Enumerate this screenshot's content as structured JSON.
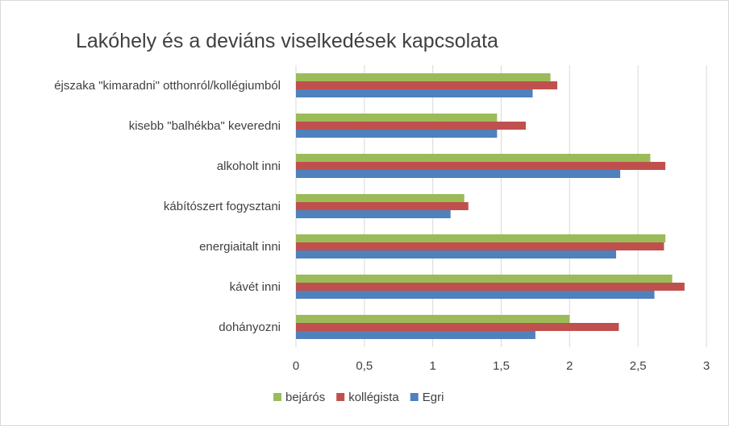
{
  "chart_data": {
    "type": "bar",
    "orientation": "horizontal",
    "title": "Lakóhely és a deviáns viselkedések kapcsolata",
    "categories": [
      "éjszaka \"kimaradni\" otthonról/kollégiumból",
      "kisebb \"balhékba\" keveredni",
      "alkoholt inni",
      "kábítószert fogysztani",
      "energiaitalt inni",
      "kávét inni",
      "dohányozni"
    ],
    "series": [
      {
        "name": "bejárós",
        "color": "#9bbb59",
        "values": [
          1.86,
          1.47,
          2.59,
          1.23,
          2.7,
          2.75,
          2.0
        ]
      },
      {
        "name": "kollégista",
        "color": "#c0504d",
        "values": [
          1.91,
          1.68,
          2.7,
          1.26,
          2.69,
          2.84,
          2.36
        ]
      },
      {
        "name": "Egri",
        "color": "#4f81bd",
        "values": [
          1.73,
          1.47,
          2.37,
          1.13,
          2.34,
          2.62,
          1.75
        ]
      }
    ],
    "xlim": [
      0,
      3
    ],
    "xticks": [
      "0",
      "0,5",
      "1",
      "1,5",
      "2",
      "2,5",
      "3"
    ],
    "xtick_values": [
      0,
      0.5,
      1,
      1.5,
      2,
      2.5,
      3
    ],
    "grid": true,
    "legend_position": "bottom"
  }
}
